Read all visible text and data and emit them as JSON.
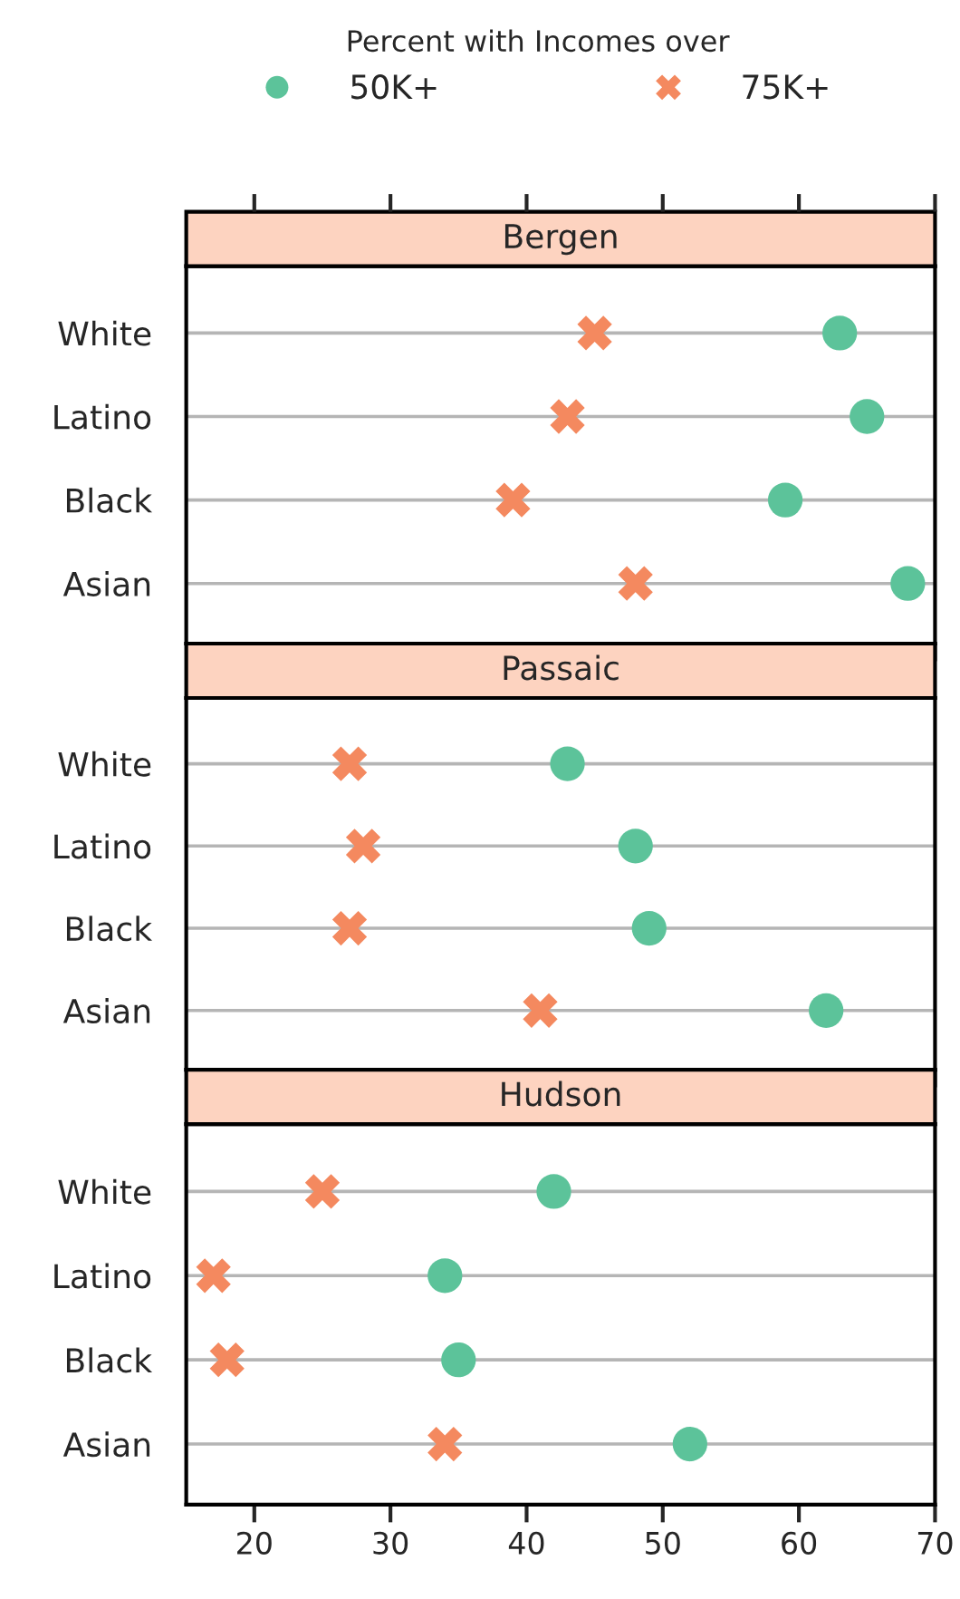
{
  "chart_data": [
    {
      "type": "scatter",
      "title": "Bergen",
      "legend_title": "Percent with Incomes over",
      "legend": "top",
      "categories": [
        "White",
        "Latino",
        "Black",
        "Asian"
      ],
      "orientation": "horizontal",
      "xlim": [
        15,
        70
      ],
      "xticks": [
        20,
        30,
        40,
        50,
        60,
        70
      ],
      "tick_labels": "y",
      "grid": "y",
      "series": [
        {
          "name": "50K+",
          "color": "#5cc39a",
          "marker": "circle",
          "values": [
            63,
            65,
            59,
            68
          ]
        },
        {
          "name": "75K+",
          "color": "#f4895f",
          "marker": "cross",
          "values": [
            45,
            43,
            39,
            48
          ]
        }
      ]
    },
    {
      "type": "scatter",
      "title": "Passaic",
      "categories": [
        "White",
        "Latino",
        "Black",
        "Asian"
      ],
      "orientation": "horizontal",
      "xlim": [
        15,
        70
      ],
      "xticks": [
        20,
        30,
        40,
        50,
        60,
        70
      ],
      "tick_labels": "y",
      "grid": "y",
      "series": [
        {
          "color": "#5cc39a",
          "marker": "circle",
          "values": [
            43,
            48,
            49,
            62
          ]
        },
        {
          "color": "#f4895f",
          "marker": "cross",
          "values": [
            27,
            28,
            27,
            41
          ]
        }
      ]
    },
    {
      "type": "scatter",
      "title": "Hudson",
      "categories": [
        "White",
        "Latino",
        "Black",
        "Asian"
      ],
      "orientation": "horizontal",
      "xlim": [
        15,
        70
      ],
      "xticks": [
        20,
        30,
        40,
        50,
        60,
        70
      ],
      "grid": "y",
      "series": [
        {
          "color": "#5cc39a",
          "marker": "circle",
          "values": [
            42,
            34,
            35,
            52
          ]
        },
        {
          "color": "#f4895f",
          "marker": "cross",
          "values": [
            25,
            17,
            18,
            34
          ]
        }
      ]
    }
  ]
}
